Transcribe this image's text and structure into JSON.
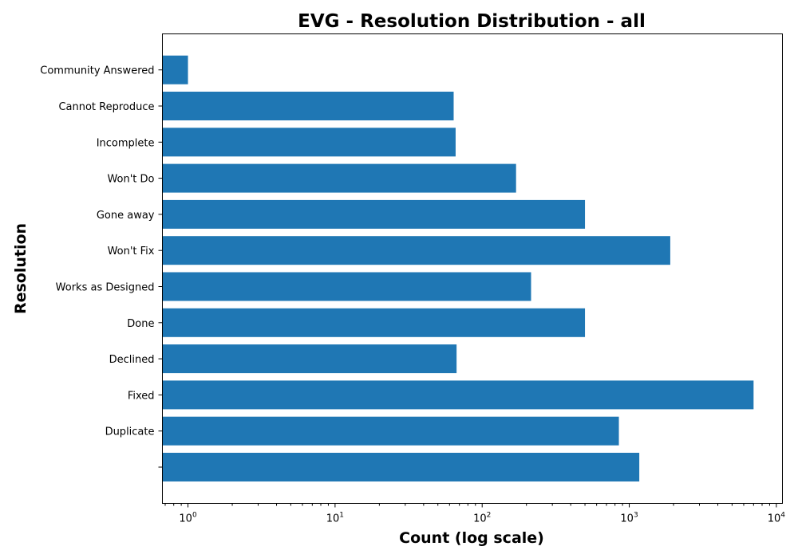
{
  "chart_data": {
    "type": "bar",
    "orientation": "horizontal",
    "title": "EVG - Resolution Distribution - all",
    "xlabel": "Count (log scale)",
    "ylabel": "Resolution",
    "x_scale": "log",
    "xlim": [
      0.67,
      11000
    ],
    "x_ticks": [
      {
        "base": "10",
        "exp": "0",
        "value": 1
      },
      {
        "base": "10",
        "exp": "1",
        "value": 10
      },
      {
        "base": "10",
        "exp": "2",
        "value": 100
      },
      {
        "base": "10",
        "exp": "3",
        "value": 1000
      },
      {
        "base": "10",
        "exp": "4",
        "value": 10000
      }
    ],
    "categories": [
      "",
      "Duplicate",
      "Fixed",
      "Declined",
      "Done",
      "Works as Designed",
      "Won't Fix",
      "Gone away",
      "Won't Do",
      "Incomplete",
      "Cannot Reproduce",
      "Community Answered"
    ],
    "values": [
      1170,
      850,
      7000,
      67,
      500,
      215,
      1900,
      500,
      170,
      66,
      64,
      1
    ],
    "grid": false,
    "colors": {
      "bar": "#1f77b4"
    }
  }
}
